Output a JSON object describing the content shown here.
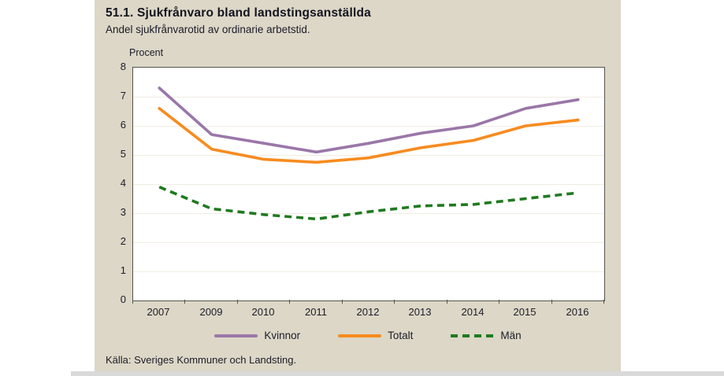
{
  "header": {
    "title": "51.1. Sjukfrånvaro bland landstingsanställda",
    "subtitle": "Andel sjukfrånvarotid av ordinarie arbetstid."
  },
  "chart_data": {
    "type": "line",
    "title": "51.1. Sjukfrånvaro bland landstingsanställda",
    "subtitle": "Andel sjukfrånvarotid av ordinarie arbetstid.",
    "ylabel": "Procent",
    "xlabel": "",
    "categories": [
      "2007",
      "2009",
      "2010",
      "2011",
      "2012",
      "2013",
      "2014",
      "2015",
      "2016"
    ],
    "series": [
      {
        "name": "Kvinnor",
        "color": "#9a77a8",
        "style": "solid",
        "values": [
          7.3,
          5.7,
          5.4,
          5.1,
          5.4,
          5.75,
          6.0,
          6.6,
          6.9
        ]
      },
      {
        "name": "Totalt",
        "color": "#f78b1f",
        "style": "solid",
        "values": [
          6.6,
          5.2,
          4.85,
          4.75,
          4.9,
          5.25,
          5.5,
          6.0,
          6.2
        ]
      },
      {
        "name": "Män",
        "color": "#1f7a1f",
        "style": "dashed",
        "values": [
          3.9,
          3.15,
          2.95,
          2.8,
          3.05,
          3.25,
          3.3,
          3.5,
          3.7
        ]
      }
    ],
    "ylim": [
      0,
      8
    ],
    "yticks": [
      0,
      1,
      2,
      3,
      4,
      5,
      6,
      7,
      8
    ],
    "grid": true,
    "legend_position": "bottom"
  },
  "footer": {
    "source": "Källa: Sveriges Kommuner och Landsting."
  },
  "colors": {
    "panel_background": "#dcd7c7",
    "plot_background": "#ffffff",
    "axis_border": "#55544c",
    "gridline": "#f0ece2",
    "text": "#1c1c28",
    "kvinnor": "#9a77a8",
    "totalt": "#f78b1f",
    "man": "#1f7a1f"
  }
}
